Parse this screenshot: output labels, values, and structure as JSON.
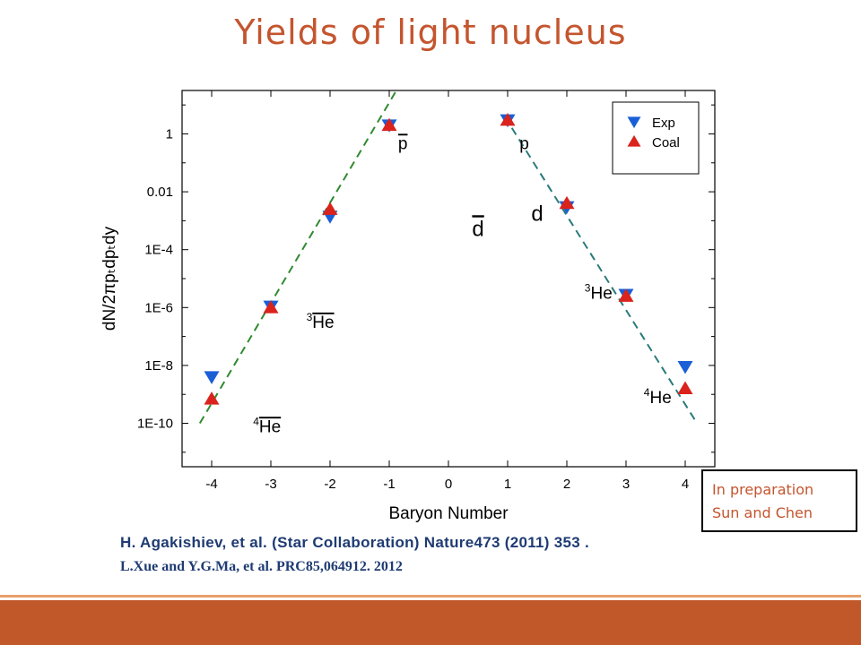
{
  "slide": {
    "title": "Yields of light nucleus",
    "note_lines": [
      "In preparation",
      "Sun and Chen"
    ],
    "references": [
      "H. Agakishiev, et al. (Star Collaboration) Nature473 (2011) 353 .",
      "L.Xue and Y.G.Ma, et al. PRC85,064912. 2012"
    ],
    "colors": {
      "title": "#c4552e",
      "reference": "#1f3b73",
      "footer": "#c0582a",
      "footer_line": "#e8a06a",
      "exp": "#1a5fd6",
      "coal": "#d9231c",
      "fit_left": "#2f8a2f",
      "fit_right": "#2a7a7a"
    }
  },
  "chart_data": {
    "type": "scatter",
    "xlabel": "Baryon Number",
    "ylabel": "dN/2πpₜdpₜdy",
    "y_scale": "log",
    "xlim": [
      -4.5,
      4.5
    ],
    "ylim_exponent": [
      -11.5,
      1.5
    ],
    "x_ticks": [
      -4,
      -3,
      -2,
      -1,
      0,
      1,
      2,
      3,
      4
    ],
    "y_ticks": [
      {
        "exp": 0,
        "label": "1"
      },
      {
        "exp": -2,
        "label": "0.01"
      },
      {
        "exp": -4,
        "label": "1E-4"
      },
      {
        "exp": -6,
        "label": "1E-6"
      },
      {
        "exp": -8,
        "label": "1E-8"
      },
      {
        "exp": -10,
        "label": "1E-10"
      }
    ],
    "legend": {
      "position": "top-right"
    },
    "series": [
      {
        "name": "Exp",
        "marker": "triangle-down",
        "points": [
          {
            "x": -4,
            "y": 4e-09
          },
          {
            "x": -3,
            "y": 1.1e-06
          },
          {
            "x": -2,
            "y": 0.0014
          },
          {
            "x": -1,
            "y": 2.0
          },
          {
            "x": 1,
            "y": 3.0
          },
          {
            "x": 2,
            "y": 0.003
          },
          {
            "x": 3,
            "y": 2.8e-06
          },
          {
            "x": 4,
            "y": 9e-09
          }
        ]
      },
      {
        "name": "Coal",
        "marker": "triangle-up",
        "points": [
          {
            "x": -4,
            "y": 7e-10
          },
          {
            "x": -3,
            "y": 1e-06
          },
          {
            "x": -2,
            "y": 0.0025
          },
          {
            "x": -1,
            "y": 2.0
          },
          {
            "x": 1,
            "y": 3.0
          },
          {
            "x": 2,
            "y": 0.004
          },
          {
            "x": 3,
            "y": 2.5e-06
          },
          {
            "x": 4,
            "y": 1.6e-09
          }
        ]
      }
    ],
    "fit_lines": [
      {
        "from": {
          "x": -4.2,
          "y": 1e-10
        },
        "to": {
          "x": -0.85,
          "y": 40
        },
        "style": "dashed"
      },
      {
        "from": {
          "x": 0.95,
          "y": 4
        },
        "to": {
          "x": 4.2,
          "y": 1e-10
        },
        "style": "dashed"
      }
    ],
    "annotations": [
      {
        "base": "p",
        "overline": true,
        "x": -0.85,
        "y": 0.3
      },
      {
        "base": "p",
        "overline": false,
        "x": 1.2,
        "y": 0.3
      },
      {
        "base": "d",
        "overline": true,
        "x": 0.4,
        "y": 0.0003,
        "large": true
      },
      {
        "base": "d",
        "overline": false,
        "x": 1.4,
        "y": 0.001,
        "large": true
      },
      {
        "sup": "3",
        "base": "He",
        "overline": true,
        "x": -2.4,
        "y": 2e-07
      },
      {
        "sup": "3",
        "base": "He",
        "overline": false,
        "x": 2.3,
        "y": 2e-06
      },
      {
        "sup": "4",
        "base": "He",
        "overline": true,
        "x": -3.3,
        "y": 5e-11
      },
      {
        "sup": "4",
        "base": "He",
        "overline": false,
        "x": 3.3,
        "y": 5e-10
      }
    ]
  }
}
